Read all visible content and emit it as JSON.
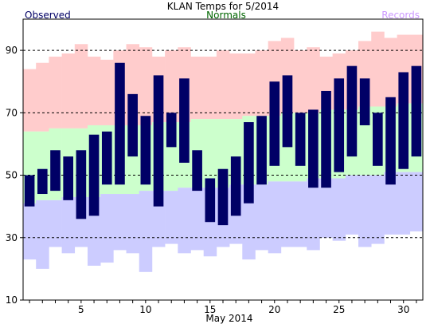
{
  "chart_data": {
    "type": "bar",
    "title": "KLAN Temps for 5/2014",
    "legend": [
      {
        "name": "Observed",
        "color": "#000066",
        "placement": "top-left"
      },
      {
        "name": "Normals",
        "color": "#006600",
        "placement": "top-center"
      },
      {
        "name": "Records",
        "color": "#cc99ff",
        "placement": "top-right"
      }
    ],
    "xlabel": "May 2014",
    "ylabel": "",
    "xlim": [
      1,
      31
    ],
    "ylim": [
      10,
      100
    ],
    "x_ticks": [
      5,
      10,
      15,
      20,
      25,
      30
    ],
    "y_ticks": [
      10,
      30,
      50,
      70,
      90
    ],
    "gridlines": [
      30,
      50,
      70,
      90
    ],
    "days": [
      1,
      2,
      3,
      4,
      5,
      6,
      7,
      8,
      9,
      10,
      11,
      12,
      13,
      14,
      15,
      16,
      17,
      18,
      19,
      20,
      21,
      22,
      23,
      24,
      25,
      26,
      27,
      28,
      29,
      30,
      31
    ],
    "series": [
      {
        "name": "Observed",
        "color": "#000066",
        "high": [
          50,
          52,
          58,
          56,
          58,
          63,
          64,
          86,
          76,
          69,
          82,
          70,
          81,
          58,
          49,
          52,
          56,
          67,
          69,
          80,
          82,
          70,
          71,
          77,
          81,
          85,
          81,
          70,
          75,
          83,
          85
        ],
        "low": [
          40,
          44,
          45,
          42,
          36,
          37,
          47,
          47,
          56,
          47,
          40,
          59,
          54,
          45,
          35,
          34,
          37,
          41,
          47,
          53,
          59,
          53,
          46,
          46,
          51,
          56,
          66,
          53,
          47,
          52,
          56
        ]
      },
      {
        "name": "Normals",
        "color": "#ccffcc",
        "high": [
          64,
          64,
          65,
          65,
          65,
          66,
          66,
          66,
          66,
          66,
          67,
          67,
          67,
          68,
          68,
          68,
          68,
          69,
          69,
          69,
          70,
          70,
          70,
          71,
          71,
          71,
          72,
          72,
          72,
          73,
          73
        ],
        "low": [
          41,
          42,
          42,
          43,
          43,
          43,
          44,
          44,
          44,
          45,
          45,
          45,
          46,
          46,
          46,
          46,
          47,
          47,
          47,
          48,
          48,
          48,
          49,
          49,
          49,
          50,
          50,
          50,
          51,
          51,
          51
        ]
      },
      {
        "name": "Records",
        "color": "#ffcccc",
        "high": [
          84,
          86,
          88,
          89,
          92,
          88,
          87,
          90,
          92,
          91,
          88,
          90,
          91,
          88,
          88,
          90,
          89,
          89,
          90,
          93,
          94,
          90,
          91,
          88,
          89,
          90,
          93,
          96,
          94,
          95,
          95
        ],
        "low": [
          23,
          20,
          27,
          25,
          27,
          21,
          22,
          26,
          25,
          19,
          27,
          28,
          25,
          26,
          24,
          27,
          28,
          23,
          26,
          25,
          27,
          27,
          26,
          30,
          29,
          31,
          27,
          28,
          31,
          31,
          32
        ]
      }
    ],
    "colors": {
      "records_band": "#ffcccc",
      "normals_band": "#ccffcc",
      "lower_band": "#ccccff",
      "observed_bar": "#000066",
      "gridline": "#000000"
    }
  }
}
